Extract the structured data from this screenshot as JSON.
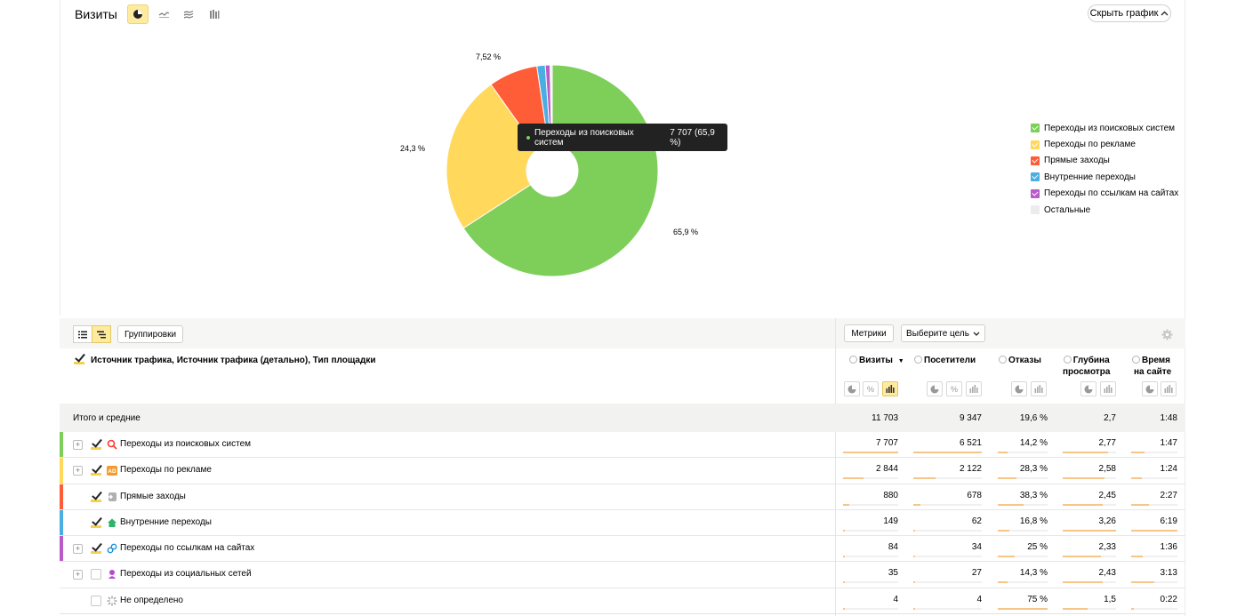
{
  "chart": {
    "title": "Визиты",
    "hide_label": "Скрыть график",
    "tooltip": {
      "label": "Переходы из поисковых систем",
      "value": "7 707 (65,9 %)"
    },
    "slice_labels": {
      "search": "65,9 %",
      "ads": "24,3 %",
      "direct": "7,52 %"
    },
    "legend": [
      {
        "label": "Переходы из поисковых систем",
        "color": "#7dcf5a"
      },
      {
        "label": "Переходы по рекламе",
        "color": "#ffd85c"
      },
      {
        "label": "Прямые заходы",
        "color": "#ff5c38"
      },
      {
        "label": "Внутренние переходы",
        "color": "#4aaee2"
      },
      {
        "label": "Переходы по ссылкам на сайтах",
        "color": "#b85cc8"
      },
      {
        "label": "Остальные",
        "color": "#ececec"
      }
    ]
  },
  "chart_data": {
    "type": "pie",
    "title": "Визиты",
    "categories": [
      "Переходы из поисковых систем",
      "Переходы по рекламе",
      "Прямые заходы",
      "Внутренние переходы",
      "Переходы по ссылкам на сайтах",
      "Остальные"
    ],
    "values": [
      7707,
      2844,
      880,
      149,
      84,
      39
    ]
  },
  "toolbar": {
    "groupings_label": "Группировки",
    "metrics_label": "Метрики",
    "goal_label": "Выберите цель"
  },
  "table": {
    "dimension_title": "Источник трафика, Источник трафика (детально), Тип площадки",
    "columns": {
      "visits": "Визиты",
      "visitors": "Посетители",
      "bounces": "Отказы",
      "depth_1": "Глубина",
      "depth_2": "просмотра",
      "time_1": "Время",
      "time_2": "на сайте"
    },
    "totals": {
      "label": "Итого и средние",
      "visits": "11 703",
      "visitors": "9 347",
      "bounces": "19,6 %",
      "depth": "2,7",
      "time": "1:48"
    },
    "rows": [
      {
        "name": "Переходы из поисковых систем",
        "visits": "7 707",
        "visitors": "6 521",
        "bounces": "14,2 %",
        "depth": "2,77",
        "time": "1:47"
      },
      {
        "name": "Переходы по рекламе",
        "visits": "2 844",
        "visitors": "2 122",
        "bounces": "28,3 %",
        "depth": "2,58",
        "time": "1:24"
      },
      {
        "name": "Прямые заходы",
        "visits": "880",
        "visitors": "678",
        "bounces": "38,3 %",
        "depth": "2,45",
        "time": "2:27"
      },
      {
        "name": "Внутренние переходы",
        "visits": "149",
        "visitors": "62",
        "bounces": "16,8 %",
        "depth": "3,26",
        "time": "6:19"
      },
      {
        "name": "Переходы по ссылкам на сайтах",
        "visits": "84",
        "visitors": "34",
        "bounces": "25 %",
        "depth": "2,33",
        "time": "1:36"
      },
      {
        "name": "Переходы из социальных сетей",
        "visits": "35",
        "visitors": "27",
        "bounces": "14,3 %",
        "depth": "2,43",
        "time": "3:13"
      },
      {
        "name": "Не определено",
        "visits": "4",
        "visitors": "4",
        "bounces": "75 %",
        "depth": "1,5",
        "time": "0:22"
      }
    ]
  }
}
